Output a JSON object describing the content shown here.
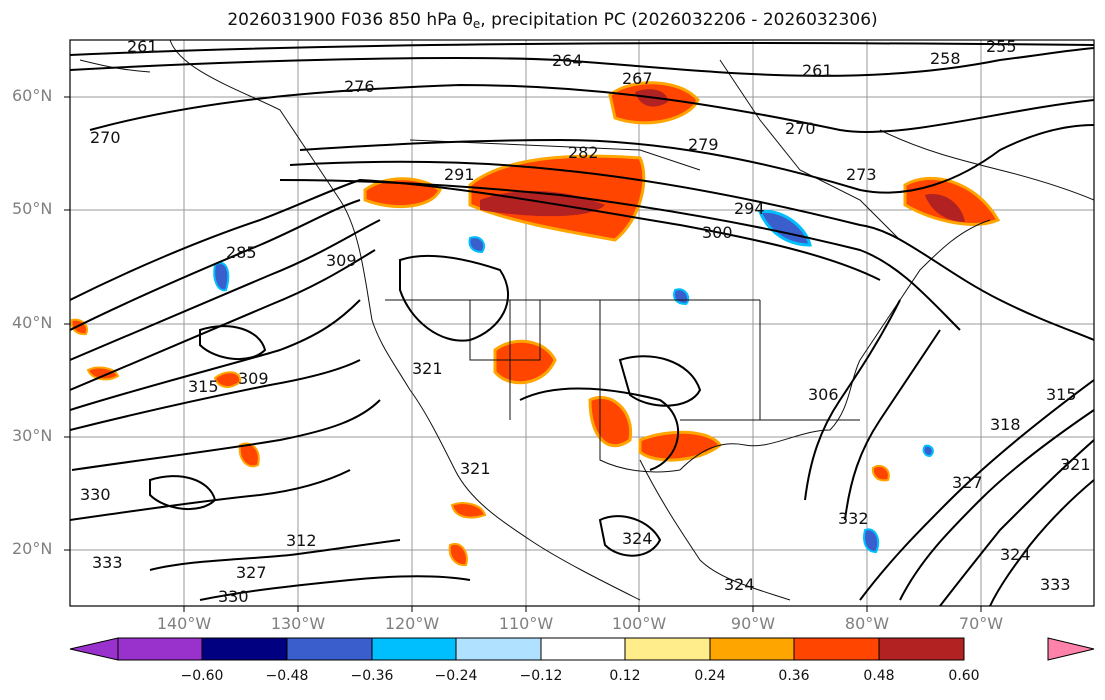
{
  "title": {
    "prefix": "2026031900 F036 850 hPa θ",
    "subscript": "e",
    "suffix": ", precipitation PC (2026032206 - 2026032306)"
  },
  "latitude_labels": [
    "60°N",
    "50°N",
    "40°N",
    "30°N",
    "20°N"
  ],
  "longitude_labels": [
    "140°W",
    "130°W",
    "120°W",
    "110°W",
    "100°W",
    "90°W",
    "80°W",
    "70°W"
  ],
  "colorbar": {
    "ticks": [
      "−0.60",
      "−0.48",
      "−0.36",
      "−0.24",
      "−0.12",
      "0.12",
      "0.24",
      "0.36",
      "0.48",
      "0.60"
    ],
    "colors": [
      "#9932cc",
      "#000080",
      "#3a5fcd",
      "#00bfff",
      "#b0e2ff",
      "#ffffff",
      "#ffec8b",
      "#ffa500",
      "#ff4500",
      "#b22222",
      "#ff82ab"
    ]
  },
  "contour_labels": [
    "261",
    "264",
    "267",
    "261",
    "258",
    "255",
    "276",
    "270",
    "270",
    "282",
    "279",
    "291",
    "273",
    "285",
    "309",
    "294",
    "300",
    "315",
    "309",
    "321",
    "306",
    "318",
    "315",
    "321",
    "327",
    "324",
    "324",
    "333",
    "330",
    "327",
    "330",
    "321",
    "312",
    "324",
    "333",
    "332"
  ]
}
